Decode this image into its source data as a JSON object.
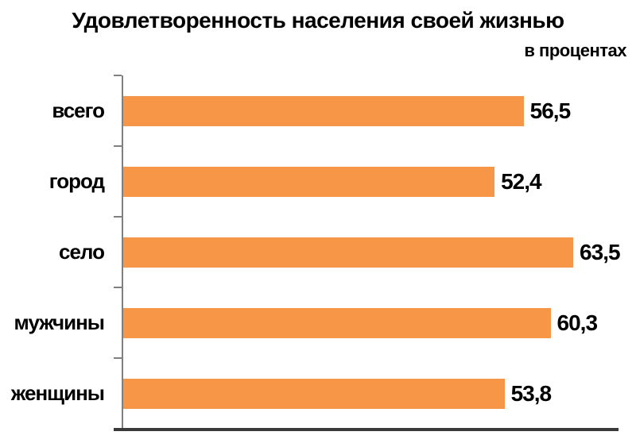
{
  "title": "Удовлетворенность населения своей жизнью",
  "subtitle": "в процентах",
  "colors": {
    "bar": "#F79646",
    "axis": "#7F7F7F",
    "baseline": "#3A3A3A",
    "text": "#000000",
    "background": "#FFFFFF"
  },
  "chart_data": {
    "type": "bar",
    "orientation": "horizontal",
    "title": "Удовлетворенность населения своей жизнью",
    "units_label": "в процентах",
    "categories": [
      "всего",
      "город",
      "село",
      "мужчины",
      "женщины"
    ],
    "values": [
      56.5,
      52.4,
      63.5,
      60.3,
      53.8
    ],
    "value_labels": [
      "56,5",
      "52,4",
      "63,5",
      "60,3",
      "53,8"
    ],
    "xlim": [
      0,
      70
    ],
    "grid": false,
    "legend": false,
    "value_label_position": "end-of-bar",
    "category_axis_side": "left"
  }
}
